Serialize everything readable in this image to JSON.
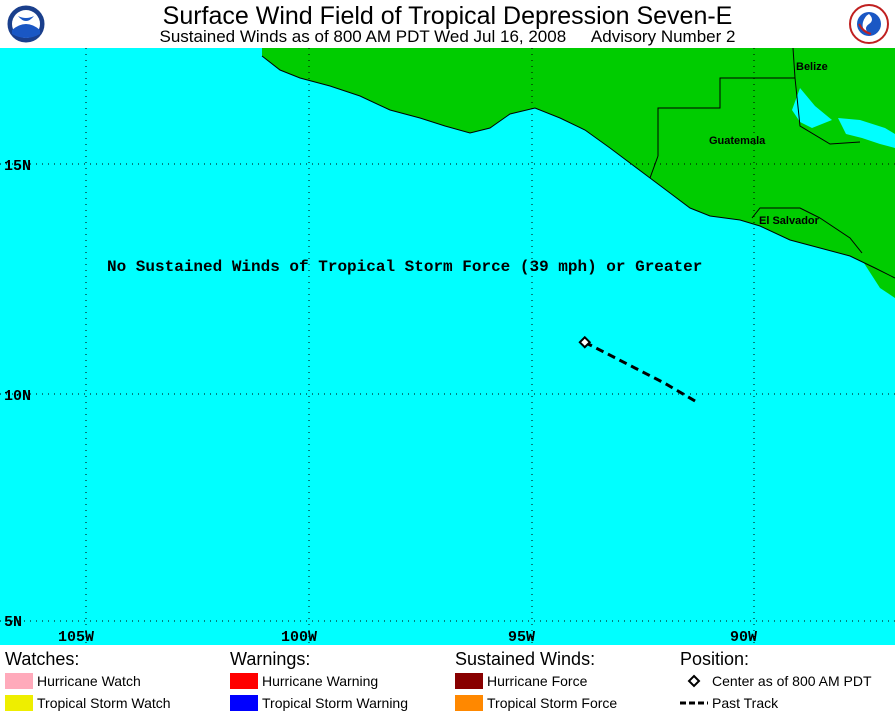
{
  "header": {
    "title": "Surface Wind Field of Tropical Depression Seven-E",
    "subtitle_left": "Sustained Winds as of 800 AM PDT Wed Jul 16, 2008",
    "subtitle_right": "Advisory Number 2"
  },
  "logos": {
    "left": "NOAA",
    "right": "National Weather Service"
  },
  "map": {
    "note": "No Sustained Winds of Tropical Storm Force (39 mph) or Greater",
    "countries": [
      "Belize",
      "Guatemala",
      "El Salvador"
    ],
    "lat_labels": [
      "15N",
      "10N",
      "5N"
    ],
    "lon_labels": [
      "105W",
      "100W",
      "95W",
      "90W"
    ],
    "colors": {
      "ocean": "#00ffff",
      "land": "#00cc00",
      "track": "#000000"
    },
    "center": {
      "lat": 11.1,
      "lon": 93.8
    },
    "past_track": [
      {
        "lat": 11.1,
        "lon": 93.8
      },
      {
        "lat": 10.6,
        "lon": 92.8
      },
      {
        "lat": 10.2,
        "lon": 92.0
      },
      {
        "lat": 9.8,
        "lon": 91.3
      }
    ]
  },
  "legend": {
    "watches": {
      "heading": "Watches:",
      "items": [
        {
          "label": "Hurricane Watch",
          "color": "#ffaabb"
        },
        {
          "label": "Tropical Storm Watch",
          "color": "#eeee00"
        }
      ]
    },
    "warnings": {
      "heading": "Warnings:",
      "items": [
        {
          "label": "Hurricane Warning",
          "color": "#ff0000"
        },
        {
          "label": "Tropical Storm Warning",
          "color": "#0000ff"
        }
      ]
    },
    "winds": {
      "heading": "Sustained Winds:",
      "items": [
        {
          "label": "Hurricane Force",
          "color": "#880000"
        },
        {
          "label": "Tropical Storm Force",
          "color": "#ff8800"
        }
      ]
    },
    "position": {
      "heading": "Position:",
      "items": [
        {
          "label": "Center as of 800 AM PDT",
          "icon": "diamond-icon"
        },
        {
          "label": "Past Track",
          "icon": "dashed-line-icon"
        }
      ]
    }
  }
}
